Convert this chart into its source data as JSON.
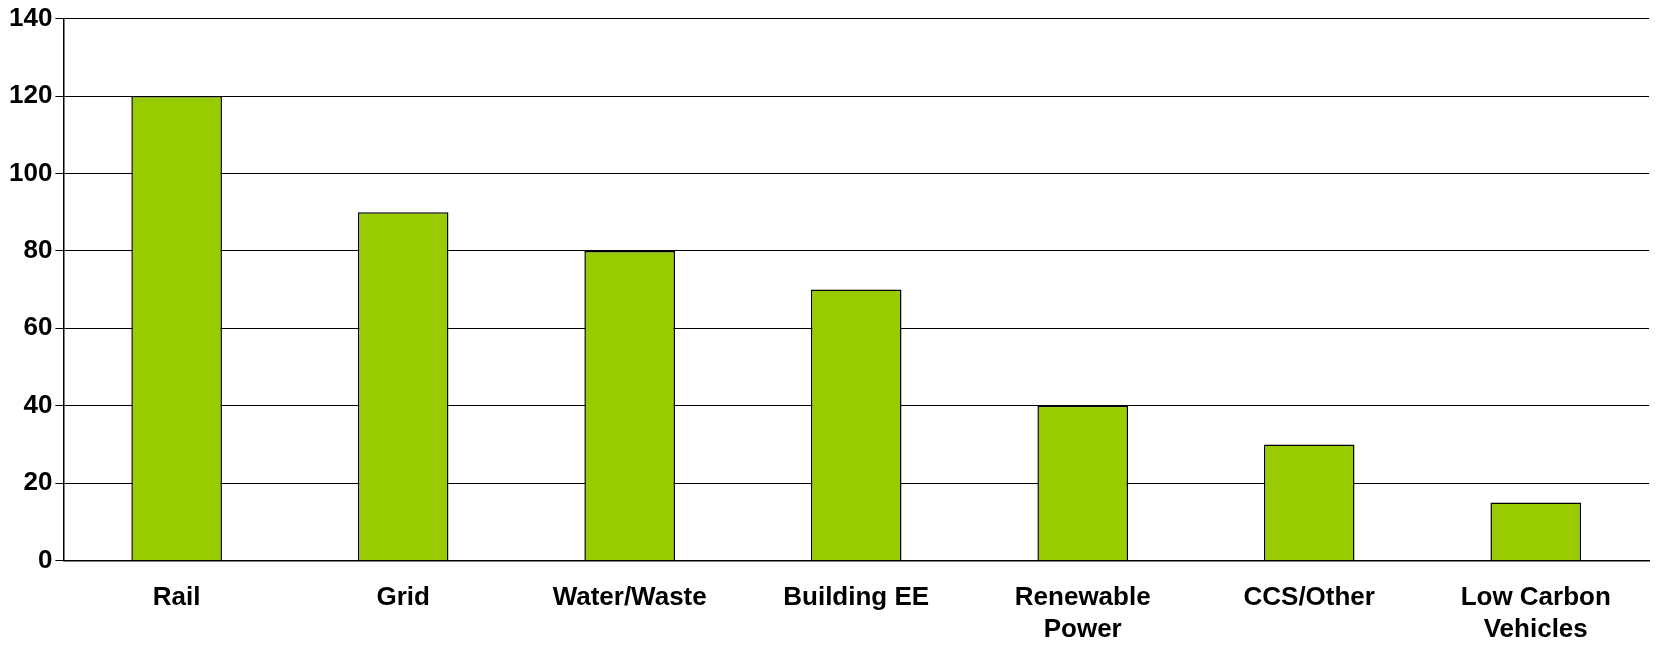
{
  "chart_data": {
    "type": "bar",
    "categories": [
      "Rail",
      "Grid",
      "Water/Waste",
      "Building EE",
      "Renewable Power",
      "CCS/Other",
      "Low Carbon Vehicles"
    ],
    "values": [
      120,
      90,
      80,
      70,
      40,
      30,
      15
    ],
    "color": "#99cc00",
    "ylim": [
      0,
      140
    ],
    "yticks": [
      0,
      20,
      40,
      60,
      80,
      100,
      120,
      140
    ],
    "grid": "y",
    "legend": false
  }
}
